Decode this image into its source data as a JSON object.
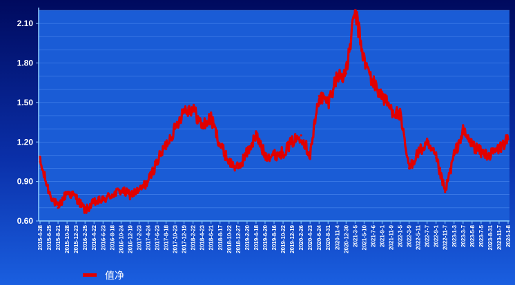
{
  "chart_data": {
    "type": "line",
    "title": "",
    "xlabel": "",
    "ylabel": "",
    "ylim": [
      0.6,
      2.2
    ],
    "yticks": [
      "0.60",
      "0.90",
      "1.20",
      "1.50",
      "1.80",
      "2.10"
    ],
    "grid": true,
    "legend_position": "bottom-left",
    "colors": {
      "line": "#e00000",
      "plot_background": "#1a5cd6",
      "axis": "#8fd0ff"
    },
    "x": [
      "2015-4-28",
      "2015-6-25",
      "2015-8-21",
      "2015-10-28",
      "2015-12-23",
      "2016-2-25",
      "2016-4-22",
      "2016-6-23",
      "2016-8-18",
      "2016-10-24",
      "2016-12-19",
      "2017-2-23",
      "2017-4-24",
      "2017-6-23",
      "2017-8-18",
      "2017-10-23",
      "2017-12-19",
      "2018-2-22",
      "2018-4-23",
      "2018-6-21",
      "2018-8-17",
      "2018-10-22",
      "2018-12-27",
      "2019-2-20",
      "2019-4-18",
      "2019-6-20",
      "2019-8-16",
      "2019-10-22",
      "2019-12-19",
      "2020-2-26",
      "2020-4-23",
      "2020-6-24",
      "2020-8-31",
      "2020-11-4",
      "2020-12-30",
      "2021-3-5",
      "2021-5-10",
      "2021-7-6",
      "2021-9-1",
      "2021-11-9",
      "2022-1-5",
      "2022-3-9",
      "2022-5-11",
      "2022-7-7",
      "2022-9-1",
      "2022-11-7",
      "2023-1-3",
      "2023-3-7",
      "2023-5-8",
      "2023-7-5",
      "2023-8-31",
      "2023-11-7",
      "2024-1-8"
    ],
    "series": [
      {
        "name": "值净",
        "values": [
          1.05,
          0.82,
          0.7,
          0.82,
          0.78,
          0.68,
          0.74,
          0.76,
          0.8,
          0.83,
          0.8,
          0.83,
          0.9,
          1.05,
          1.18,
          1.3,
          1.45,
          1.45,
          1.32,
          1.38,
          1.18,
          1.05,
          1.0,
          1.12,
          1.25,
          1.1,
          1.1,
          1.12,
          1.2,
          1.25,
          1.1,
          1.55,
          1.5,
          1.7,
          1.72,
          2.2,
          1.82,
          1.65,
          1.55,
          1.45,
          1.4,
          1.0,
          1.12,
          1.18,
          1.08,
          0.82,
          1.1,
          1.28,
          1.18,
          1.12,
          1.1,
          1.15,
          1.22
        ]
      }
    ]
  }
}
